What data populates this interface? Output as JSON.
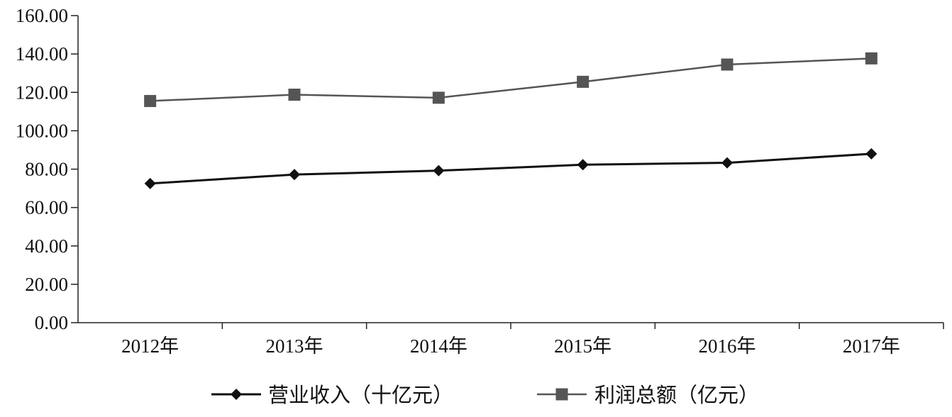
{
  "chart_data": {
    "type": "line",
    "categories": [
      "2012年",
      "2013年",
      "2014年",
      "2015年",
      "2016年",
      "2017年"
    ],
    "ylim": [
      0,
      160
    ],
    "ytick_labels": [
      "0.00",
      "20.00",
      "40.00",
      "60.00",
      "80.00",
      "100.00",
      "120.00",
      "140.00",
      "160.00"
    ],
    "grid": false,
    "legend_position": "bottom",
    "series": [
      {
        "name": "营业收入（十亿元）",
        "marker": "diamond",
        "color": "#111111",
        "values": [
          72.5,
          77.2,
          79.2,
          82.3,
          83.3,
          88.0
        ]
      },
      {
        "name": "利润总额（亿元）",
        "marker": "square",
        "color": "#555555",
        "values": [
          115.5,
          118.8,
          117.2,
          125.5,
          134.5,
          137.7
        ]
      }
    ]
  }
}
